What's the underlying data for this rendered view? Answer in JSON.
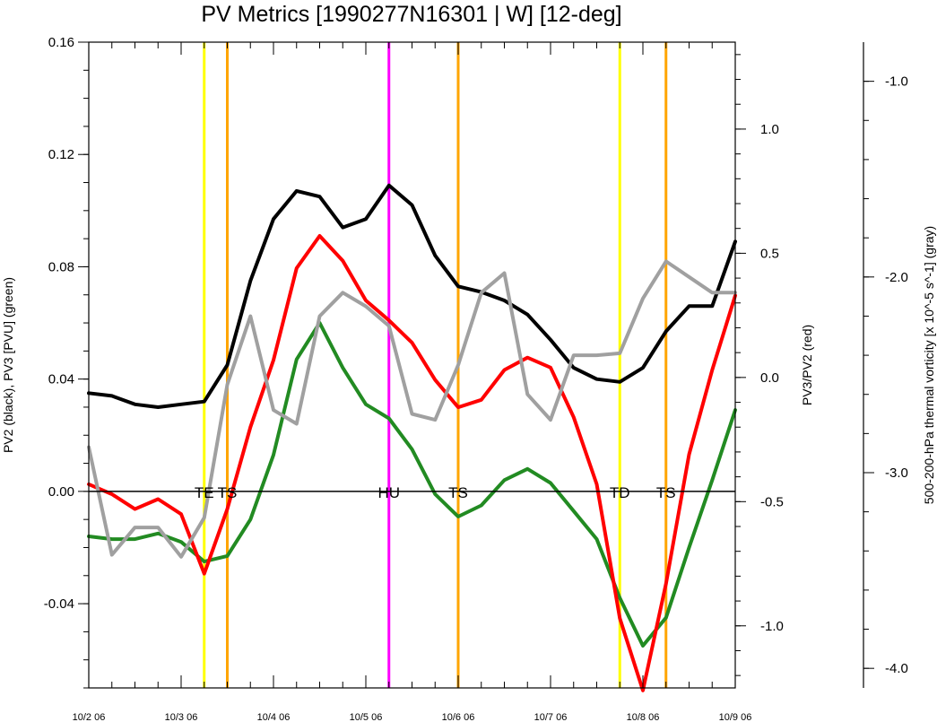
{
  "chart_data": {
    "type": "line",
    "title": "PV Metrics [1990277N16301 | W] [12-deg]",
    "ylabel_left": "PV2 (black), PV3 [PVU] (green)",
    "ylabel_right": "PV3/PV2 (red)",
    "ylabel_far_right": "500-200-hPa thermal vorticity [x 10^-5 s^-1] (gray)",
    "x_ticks": [
      "10/2 06",
      "10/3 06",
      "10/4 06",
      "10/5 06",
      "10/6 06",
      "10/7 06",
      "10/8 06",
      "10/9 06"
    ],
    "xlim": [
      0,
      7
    ],
    "ylim_left": [
      -0.07,
      0.16
    ],
    "left_ticks": [
      "-0.04",
      "0.00",
      "0.04",
      "0.08",
      "0.12",
      "0.16"
    ],
    "ylim_right": [
      -1.25,
      1.35
    ],
    "right_ticks": [
      "-1.0",
      "-0.5",
      "0.0",
      "0.5",
      "1.0"
    ],
    "ylim_far_right": [
      -4.1,
      -0.8
    ],
    "far_right_ticks": [
      "-4.0",
      "-3.0",
      "-2.0",
      "-1.0"
    ],
    "x": [
      0,
      0.25,
      0.5,
      0.75,
      1,
      1.25,
      1.5,
      1.75,
      2,
      2.25,
      2.5,
      2.75,
      3,
      3.25,
      3.5,
      3.75,
      4,
      4.25,
      4.5,
      4.75,
      5,
      5.25,
      5.5,
      5.75,
      6,
      6.25,
      6.5,
      6.75,
      7
    ],
    "series": [
      {
        "name": "PV2",
        "color": "#000000",
        "axis": "left",
        "values": [
          0.035,
          0.034,
          0.031,
          0.03,
          0.031,
          0.032,
          0.045,
          0.075,
          0.097,
          0.107,
          0.105,
          0.094,
          0.097,
          0.109,
          0.102,
          0.084,
          0.073,
          0.071,
          0.068,
          0.063,
          0.054,
          0.044,
          0.04,
          0.039,
          0.044,
          0.057,
          0.066,
          0.066,
          0.089
        ]
      },
      {
        "name": "PV3",
        "color": "#228b22",
        "axis": "left",
        "values": [
          -0.016,
          -0.017,
          -0.017,
          -0.015,
          -0.018,
          -0.025,
          -0.023,
          -0.01,
          0.013,
          0.047,
          0.06,
          0.044,
          0.031,
          0.026,
          0.015,
          -0.001,
          -0.009,
          -0.005,
          0.004,
          0.008,
          0.003,
          -0.007,
          -0.017,
          -0.038,
          -0.055,
          -0.045,
          -0.02,
          0.004,
          0.029
        ]
      },
      {
        "name": "PV3/PV2",
        "color": "#ff0000",
        "axis": "right",
        "values": [
          -0.43,
          -0.47,
          -0.53,
          -0.49,
          -0.55,
          -0.79,
          -0.53,
          -0.2,
          0.07,
          0.44,
          0.57,
          0.47,
          0.31,
          0.23,
          0.14,
          -0.01,
          -0.12,
          -0.09,
          0.03,
          0.08,
          0.04,
          -0.16,
          -0.43,
          -0.97,
          -1.26,
          -0.83,
          -0.31,
          0.03,
          0.33
        ]
      },
      {
        "name": "thermal vorticity",
        "color": "#a0a0a0",
        "axis": "far_right",
        "values": [
          -2.87,
          -3.42,
          -3.28,
          -3.28,
          -3.43,
          -3.23,
          -2.55,
          -2.2,
          -2.68,
          -2.75,
          -2.2,
          -2.08,
          -2.15,
          -2.25,
          -2.7,
          -2.73,
          -2.45,
          -2.08,
          -1.98,
          -2.6,
          -2.73,
          -2.4,
          -2.4,
          -2.39,
          -2.11,
          -1.92,
          -2.0,
          -2.08,
          -2.08
        ]
      }
    ],
    "vertical_markers": [
      {
        "x": 1.25,
        "color": "#ffff00",
        "label": "TE"
      },
      {
        "x": 1.5,
        "color": "#ffa500",
        "label": "TS"
      },
      {
        "x": 3.25,
        "color": "#ff00ff",
        "label": "HU"
      },
      {
        "x": 4.0,
        "color": "#ffa500",
        "label": "TS"
      },
      {
        "x": 5.75,
        "color": "#ffff00",
        "label": "TD"
      },
      {
        "x": 6.25,
        "color": "#ffa500",
        "label": "TS"
      }
    ]
  }
}
